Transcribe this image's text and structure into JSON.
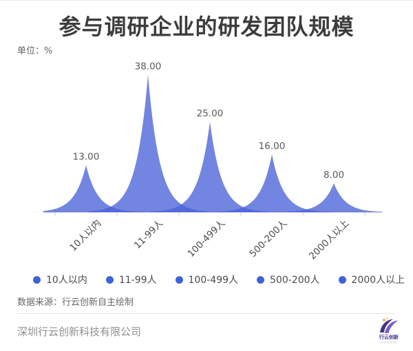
{
  "page": {
    "title": "参与调研企业的研发团队规模",
    "unit_label": "单位：%"
  },
  "chart_data": {
    "type": "area",
    "subtype": "sharp-peak area spikes (one translucent peak per category)",
    "title": "参与调研企业的研发团队规模",
    "unit": "%",
    "categories": [
      "10人以内",
      "11-99人",
      "100-499人",
      "500-200人",
      "2000人以上"
    ],
    "values": [
      13,
      38,
      25,
      16,
      8
    ],
    "value_labels": [
      "13.00",
      "38.00",
      "25.00",
      "16.00",
      "8.00"
    ],
    "ylim": [
      0,
      38
    ],
    "grid": false,
    "legend_position": "bottom",
    "colors": {
      "area_fill": "#4a63d8",
      "area_opacity": 0.78,
      "legend_dot": "#3c63da",
      "axis_line": "#c9c9c9",
      "value_label": "#595959",
      "axis_label": "#4a4a4a"
    }
  },
  "legend": {
    "items": [
      "10人以内",
      "11-99人",
      "100-499人",
      "500-200人",
      "2000人以上"
    ]
  },
  "source_note": "数据来源：行云创新自主绘制",
  "footer": {
    "company": "深圳行云创新科技有限公司",
    "logo_text": "行云创新",
    "logo_subtext": "CloudToGo"
  }
}
